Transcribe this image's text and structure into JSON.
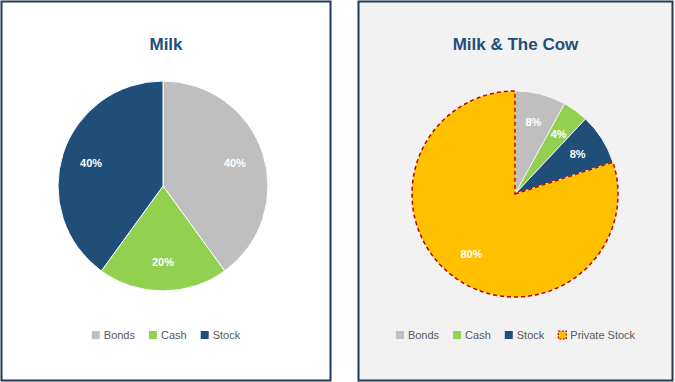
{
  "chart_data": [
    {
      "type": "pie",
      "title": "Milk",
      "categories": [
        "Bonds",
        "Cash",
        "Stock"
      ],
      "values": [
        40,
        20,
        40
      ],
      "value_labels": [
        "40%",
        "20%",
        "40%"
      ],
      "colors": [
        "#bfbfbf",
        "#92d050",
        "#1f4e79"
      ],
      "data_labels": true,
      "legend": "bottom"
    },
    {
      "type": "pie",
      "title": "Milk & The Cow",
      "categories": [
        "Bonds",
        "Cash",
        "Stock",
        "Private Stock"
      ],
      "values": [
        8,
        4,
        8,
        80
      ],
      "value_labels": [
        "8%",
        "4%",
        "8%",
        "80%"
      ],
      "colors": [
        "#bfbfbf",
        "#92d050",
        "#1f4e79",
        "#ffc000"
      ],
      "data_labels": true,
      "legend": "bottom"
    }
  ]
}
